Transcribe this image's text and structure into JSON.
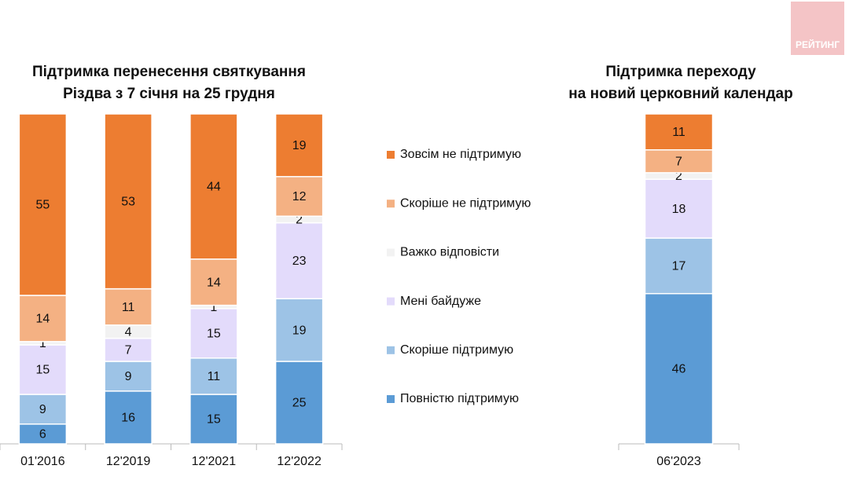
{
  "logo": "РЕЙТИНГ",
  "chart_data": [
    {
      "type": "stacked-bar",
      "title": [
        "Підтримка перенесення святкування",
        "Різдва з 7 січня на 25 грудня"
      ],
      "categories": [
        "01'2016",
        "12'2019",
        "12'2021",
        "12'2022"
      ],
      "series": [
        {
          "name": "Повністю підтримую",
          "color": "#5b9bd5",
          "values": [
            6,
            16,
            15,
            25
          ]
        },
        {
          "name": "Скоріше  підтримую",
          "color": "#9dc3e6",
          "values": [
            9,
            9,
            11,
            19
          ]
        },
        {
          "name": "Мені байдуже",
          "color": "#e3dbfb",
          "values": [
            15,
            7,
            15,
            23
          ]
        },
        {
          "name": "Важко відповісти",
          "color": "#f2f2f2",
          "values": [
            1,
            4,
            1,
            2
          ]
        },
        {
          "name": "Скоріше  не підтримую",
          "color": "#f4b183",
          "values": [
            14,
            11,
            14,
            12
          ]
        },
        {
          "name": "Зовсім не підтримую",
          "color": "#ed7d31",
          "values": [
            55,
            53,
            44,
            19
          ]
        }
      ]
    },
    {
      "type": "stacked-bar",
      "title": [
        "Підтримка переходу",
        "на новий церковний календар"
      ],
      "categories": [
        "06'2023"
      ],
      "series": [
        {
          "color": "#5b9bd5",
          "values": [
            46
          ]
        },
        {
          "color": "#9dc3e6",
          "values": [
            17
          ]
        },
        {
          "color": "#e3dbfb",
          "values": [
            18
          ]
        },
        {
          "color": "#f2f2f2",
          "values": [
            2
          ]
        },
        {
          "color": "#f4b183",
          "values": [
            7
          ]
        },
        {
          "color": "#ed7d31",
          "values": [
            11
          ]
        }
      ]
    }
  ]
}
